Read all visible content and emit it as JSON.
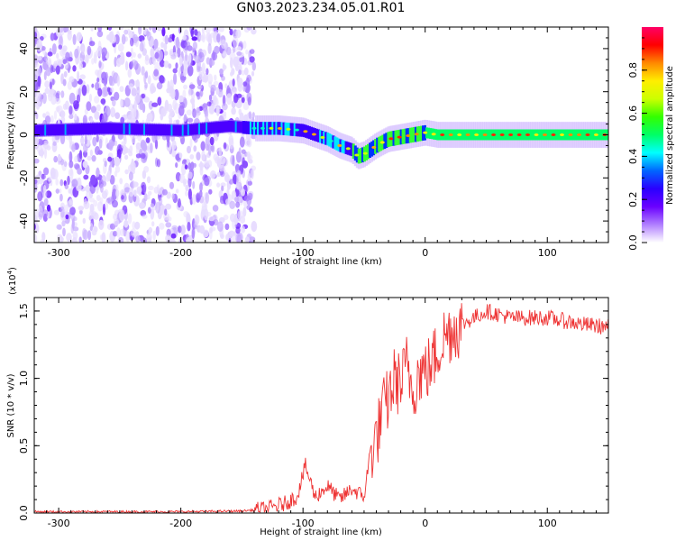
{
  "title": "GN03.2023.234.05.01.R01",
  "chart_data": [
    {
      "type": "heatmap",
      "xlabel": "Height of straight line (km)",
      "ylabel": "Frequency (Hz)",
      "xlim": [
        -320,
        150
      ],
      "ylim": [
        -50,
        50
      ],
      "xticks": [
        "-300",
        "-200",
        "-100",
        "0",
        "100"
      ],
      "yticks": [
        "-40",
        "-20",
        "0",
        "20",
        "40"
      ],
      "colorbar": {
        "label": "Normalized spectral amplitude",
        "range": [
          0,
          1
        ],
        "ticks": [
          "0.0",
          "0.2",
          "0.4",
          "0.6",
          "0.8"
        ],
        "colors": [
          "#ffffff",
          "#b07fff",
          "#6a00ff",
          "#2a00ff",
          "#0066ff",
          "#00ffff",
          "#00ff66",
          "#33ff00",
          "#ccff00",
          "#ffee00",
          "#ff8800",
          "#ff0000",
          "#ff0066"
        ]
      },
      "noise_region_end_km": -140,
      "ridge": {
        "x": [
          -320,
          -260,
          -200,
          -160,
          -140,
          -120,
          -100,
          -80,
          -70,
          -60,
          -55,
          -50,
          -40,
          -30,
          -20,
          -10,
          0,
          10,
          30,
          60,
          100,
          150
        ],
        "y": [
          2,
          3,
          2,
          4,
          3,
          3,
          2,
          -2,
          -5,
          -7,
          -10,
          -9,
          -5,
          -2,
          -1,
          0,
          1,
          0,
          0,
          0,
          0,
          0
        ]
      }
    },
    {
      "type": "line",
      "xlabel": "Height of straight line (km)",
      "ylabel": "SNR (10 * v/v)",
      "yscale_label": "(x10",
      "yscale_exp": "4",
      "yscale_close": ")",
      "xlim": [
        -320,
        150
      ],
      "ylim": [
        0,
        1.6
      ],
      "xticks": [
        "-300",
        "-200",
        "-100",
        "0",
        "100"
      ],
      "yticks": [
        "0.0",
        "0.5",
        "1.0",
        "1.5"
      ],
      "line_color": "#ee3333",
      "series": [
        {
          "x": [
            -320,
            -200,
            -150,
            -130,
            -115,
            -105,
            -98,
            -90,
            -80,
            -70,
            -60,
            -50,
            -45,
            -40,
            -35,
            -30,
            -25,
            -20,
            -15,
            -10,
            -5,
            0,
            5,
            10,
            15,
            20,
            30,
            40,
            50,
            70,
            100,
            130,
            150
          ],
          "y": [
            0.01,
            0.01,
            0.015,
            0.03,
            0.07,
            0.12,
            0.35,
            0.12,
            0.2,
            0.1,
            0.18,
            0.12,
            0.45,
            0.55,
            0.75,
            0.85,
            1.0,
            0.95,
            1.1,
            0.92,
            1.05,
            1.05,
            1.1,
            1.2,
            1.3,
            1.35,
            1.4,
            1.45,
            1.5,
            1.45,
            1.45,
            1.4,
            1.38
          ]
        }
      ]
    }
  ]
}
